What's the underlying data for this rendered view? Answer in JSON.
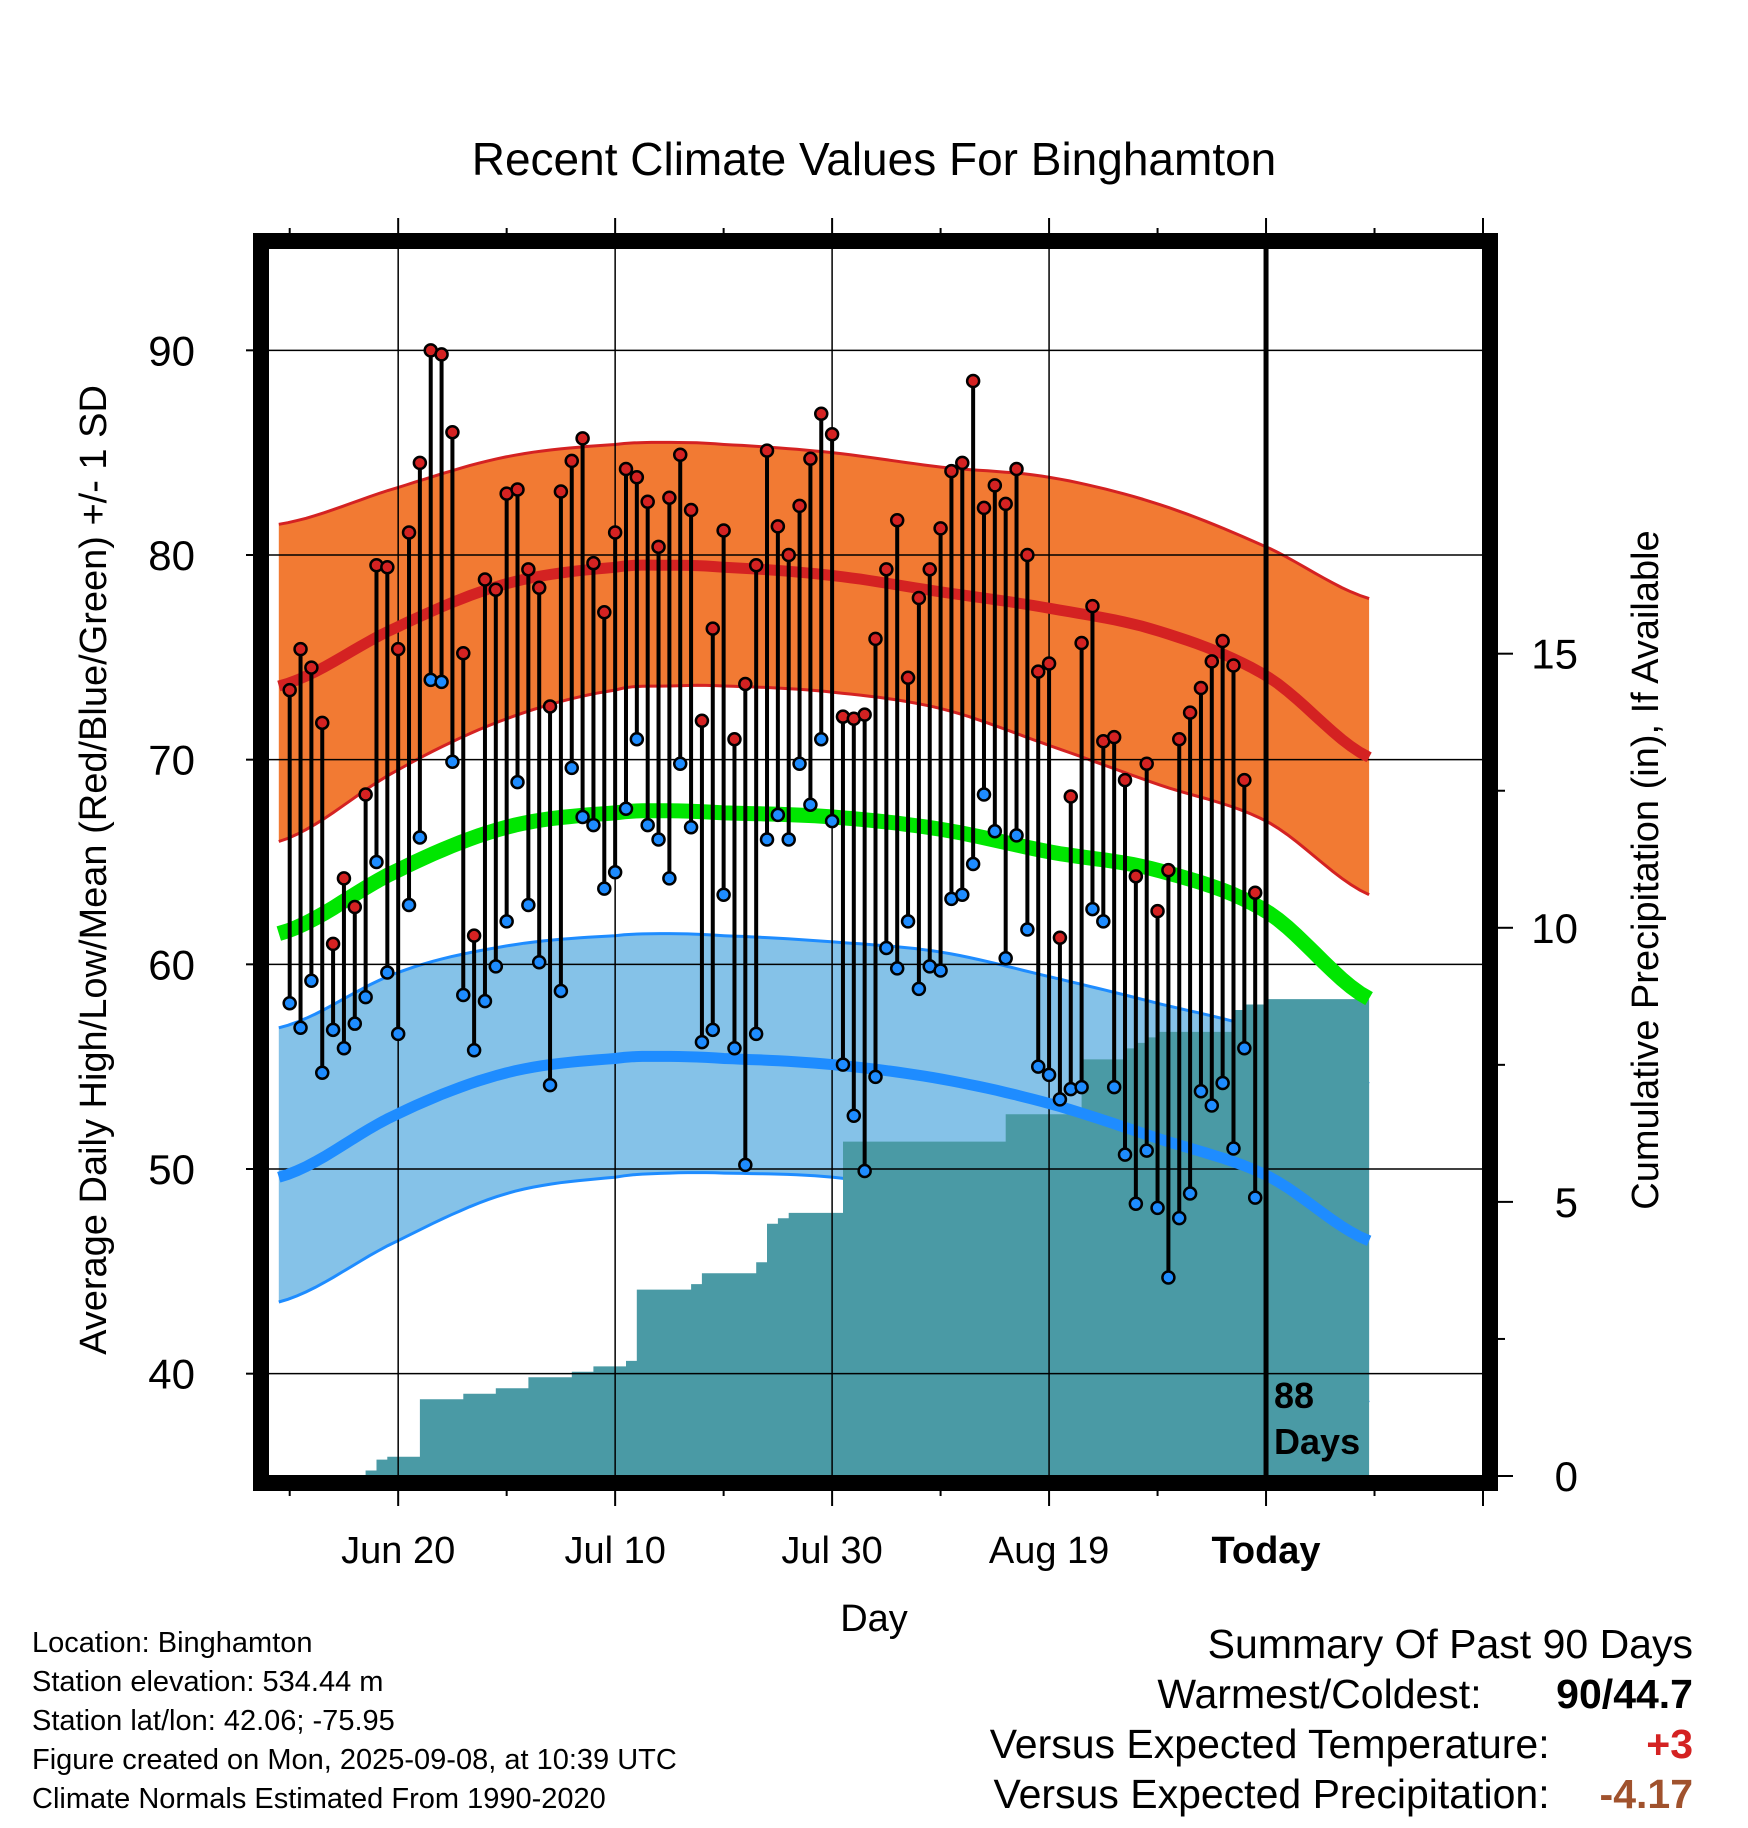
{
  "chart_data": {
    "type": "line",
    "title": "Recent Climate Values For Binghamton",
    "xlabel": "Day",
    "ylabel": "Average Daily High/Low/Mean (Red/Blue/Green) +/- 1 SD",
    "y2label": "Cumulative Precipitation (in), If Available",
    "ylim": [
      35,
      95
    ],
    "y2lim": [
      0,
      22.4
    ],
    "xlim": [
      -12,
      100
    ],
    "x_tick_labels": [
      "Jun 20",
      "Jul 10",
      "Jul 30",
      "Aug 19",
      "Today"
    ],
    "x_tick_days": [
      0,
      20,
      40,
      60,
      80
    ],
    "y_ticks": [
      40,
      50,
      60,
      70,
      80,
      90
    ],
    "y2_ticks": [
      0,
      5,
      10,
      15
    ],
    "marker_line_label": "88\nDays",
    "colors": {
      "high_band": "#f27a33",
      "high_line": "#d42222",
      "low_band": "#85c2e8",
      "low_line": "#1e8cff",
      "mean_line": "#00e600",
      "precip": "#4a9aa5",
      "high_dot": "#d42222",
      "low_dot": "#1e8cff"
    },
    "normal_curves": {
      "days": [
        -11,
        0,
        10,
        20,
        25,
        30,
        40,
        50,
        60,
        70,
        80,
        90
      ],
      "high_mean": [
        73.6,
        76.5,
        78.6,
        79.4,
        79.5,
        79.4,
        79,
        78.2,
        77.4,
        76.3,
        74.1,
        70
      ],
      "high_sd_upper": [
        81.5,
        83.3,
        84.8,
        85.4,
        85.5,
        85.4,
        85,
        84.3,
        83.8,
        82.5,
        80.4,
        77.8
      ],
      "high_sd_lower": [
        66,
        69.5,
        72,
        73.4,
        73.6,
        73.6,
        73.3,
        72.5,
        70.7,
        68.8,
        67,
        63.3
      ],
      "mean": [
        61.5,
        64.6,
        66.7,
        67.4,
        67.5,
        67.4,
        67.2,
        66.6,
        65.5,
        64.6,
        62.6,
        58.2
      ],
      "low_mean": [
        49.6,
        52.7,
        54.7,
        55.4,
        55.5,
        55.4,
        55.1,
        54.4,
        53.2,
        51.5,
        49.7,
        46.4
      ],
      "low_sd_upper": [
        56.9,
        59.6,
        60.9,
        61.4,
        61.5,
        61.4,
        61.1,
        60.6,
        59.4,
        58.1,
        56.7,
        54.1
      ],
      "low_sd_lower": [
        43.5,
        46.5,
        48.8,
        49.6,
        49.8,
        49.8,
        49.6,
        48.8,
        47.4,
        45.1,
        42.1,
        38.5
      ]
    },
    "series": [
      {
        "name": "Daily High",
        "x": [
          -10,
          -9,
          -8,
          -7,
          -6,
          -5,
          -4,
          -3,
          -2,
          -1,
          0,
          1,
          2,
          3,
          4,
          5,
          6,
          7,
          8,
          9,
          10,
          11,
          12,
          13,
          14,
          15,
          16,
          17,
          18,
          19,
          20,
          21,
          22,
          23,
          24,
          25,
          26,
          27,
          28,
          29,
          30,
          31,
          32,
          33,
          34,
          35,
          36,
          37,
          38,
          39,
          40,
          41,
          42,
          43,
          44,
          45,
          46,
          47,
          48,
          49,
          50,
          51,
          52,
          53,
          54,
          55,
          56,
          57,
          58,
          59,
          60,
          61,
          62,
          63,
          64,
          65,
          66,
          67,
          68,
          69,
          70,
          71,
          72,
          73,
          74,
          75,
          76,
          77,
          78,
          79
        ],
        "values": [
          73.4,
          75.4,
          74.5,
          71.8,
          61,
          64.2,
          62.8,
          68.3,
          79.5,
          79.4,
          75.4,
          81.1,
          84.5,
          90,
          89.8,
          86,
          75.2,
          61.4,
          78.8,
          78.3,
          83,
          83.2,
          79.3,
          78.4,
          72.6,
          83.1,
          84.6,
          85.7,
          79.6,
          77.2,
          81.1,
          84.2,
          83.8,
          82.6,
          80.4,
          82.8,
          84.9,
          82.2,
          71.9,
          76.4,
          81.2,
          71,
          73.7,
          79.5,
          85.1,
          81.4,
          80,
          82.4,
          84.7,
          86.9,
          85.9,
          72.1,
          72,
          72.2,
          75.9,
          79.3,
          81.7,
          74,
          77.9,
          79.3,
          81.3,
          84.1,
          84.5,
          88.5,
          82.3,
          83.4,
          82.5,
          84.2,
          80,
          74.3,
          74.7,
          61.3,
          68.2,
          75.7,
          77.5,
          70.9,
          71.1,
          69,
          64.3,
          69.8,
          62.6,
          64.6,
          71,
          72.3,
          73.5,
          74.8,
          75.8,
          74.6,
          69,
          63.5
        ]
      },
      {
        "name": "Daily Low",
        "x": [
          -10,
          -9,
          -8,
          -7,
          -6,
          -5,
          -4,
          -3,
          -2,
          -1,
          0,
          1,
          2,
          3,
          4,
          5,
          6,
          7,
          8,
          9,
          10,
          11,
          12,
          13,
          14,
          15,
          16,
          17,
          18,
          19,
          20,
          21,
          22,
          23,
          24,
          25,
          26,
          27,
          28,
          29,
          30,
          31,
          32,
          33,
          34,
          35,
          36,
          37,
          38,
          39,
          40,
          41,
          42,
          43,
          44,
          45,
          46,
          47,
          48,
          49,
          50,
          51,
          52,
          53,
          54,
          55,
          56,
          57,
          58,
          59,
          60,
          61,
          62,
          63,
          64,
          65,
          66,
          67,
          68,
          69,
          70,
          71,
          72,
          73,
          74,
          75,
          76,
          77,
          78,
          79
        ],
        "values": [
          58.1,
          56.9,
          59.2,
          54.7,
          56.8,
          55.9,
          57.1,
          58.4,
          65,
          59.6,
          56.6,
          62.9,
          66.2,
          73.9,
          73.8,
          69.9,
          58.5,
          55.8,
          58.2,
          59.9,
          62.1,
          68.9,
          62.9,
          60.1,
          54.1,
          58.7,
          69.6,
          67.2,
          66.8,
          63.7,
          64.5,
          67.6,
          71,
          66.8,
          66.1,
          64.2,
          69.8,
          66.7,
          56.2,
          56.8,
          63.4,
          55.9,
          50.2,
          56.6,
          66.1,
          67.3,
          66.1,
          69.8,
          67.8,
          71,
          67,
          55.1,
          52.6,
          49.9,
          54.5,
          60.8,
          59.8,
          62.1,
          58.8,
          59.9,
          59.7,
          63.2,
          63.4,
          64.9,
          68.3,
          66.5,
          60.3,
          66.3,
          61.7,
          55,
          54.6,
          53.4,
          53.9,
          54,
          62.7,
          62.1,
          54,
          50.7,
          48.3,
          50.9,
          48.1,
          44.7,
          47.6,
          48.8,
          53.8,
          53.1,
          54.2,
          51,
          55.9,
          48.6
        ]
      }
    ],
    "precipitation": {
      "name": "Cumulative Precipitation",
      "x": [
        -10,
        -8,
        -4,
        -3,
        -2,
        -1,
        0,
        1,
        2,
        3,
        4,
        5,
        6,
        7,
        8,
        9,
        10,
        11,
        12,
        13,
        14,
        15,
        16,
        17,
        18,
        19,
        20,
        21,
        22,
        23,
        24,
        25,
        26,
        27,
        28,
        29,
        30,
        31,
        32,
        33,
        34,
        35,
        36,
        37,
        38,
        39,
        40,
        41,
        42,
        43,
        44,
        45,
        46,
        47,
        48,
        49,
        50,
        51,
        52,
        53,
        54,
        55,
        56,
        57,
        58,
        59,
        60,
        61,
        62,
        63,
        64,
        65,
        66,
        67,
        68,
        69,
        70,
        71,
        72,
        73,
        74,
        75,
        76,
        77,
        78,
        79,
        80,
        81,
        88
      ],
      "values": [
        0,
        0,
        0,
        0.1,
        0.3,
        0.35,
        0.35,
        0.35,
        1.4,
        1.4,
        1.4,
        1.4,
        1.5,
        1.5,
        1.5,
        1.6,
        1.6,
        1.6,
        1.8,
        1.8,
        1.8,
        1.8,
        1.9,
        1.9,
        2.0,
        2.0,
        2.0,
        2.1,
        3.4,
        3.4,
        3.4,
        3.4,
        3.4,
        3.5,
        3.7,
        3.7,
        3.7,
        3.7,
        3.7,
        3.9,
        4.6,
        4.7,
        4.8,
        4.8,
        4.8,
        4.8,
        4.8,
        6.1,
        6.1,
        6.1,
        6.1,
        6.1,
        6.1,
        6.1,
        6.1,
        6.1,
        6.1,
        6.1,
        6.1,
        6.1,
        6.1,
        6.1,
        6.6,
        6.6,
        6.6,
        6.6,
        6.6,
        6.6,
        6.6,
        7.6,
        7.6,
        7.6,
        7.6,
        7.8,
        7.9,
        8.0,
        8.1,
        8.1,
        8.1,
        8.1,
        8.1,
        8.1,
        8.1,
        8.5,
        8.6,
        8.6,
        8.7,
        8.7,
        8.7
      ]
    }
  },
  "footer": {
    "location": "Location: Binghamton",
    "elevation": "Station elevation: 534.44 m",
    "latlon": "Station lat/lon: 42.06; -75.95",
    "created": "Figure created on Mon, 2025-09-08, at 10:39 UTC",
    "normals": "Climate Normals Estimated From 1990-2020"
  },
  "summary": {
    "heading": "Summary Of Past 90 Days",
    "warmest_coldest_label": "Warmest/Coldest:",
    "warmest": "90",
    "slash": "/",
    "coldest": "44.7",
    "temp_label": "Versus Expected Temperature:",
    "temp_value": "+3",
    "temp_color": "#d42222",
    "precip_label": "Versus Expected Precipitation:",
    "precip_value": "-4.17",
    "precip_color": "#a0522d",
    "coldest_color": "#000000"
  }
}
